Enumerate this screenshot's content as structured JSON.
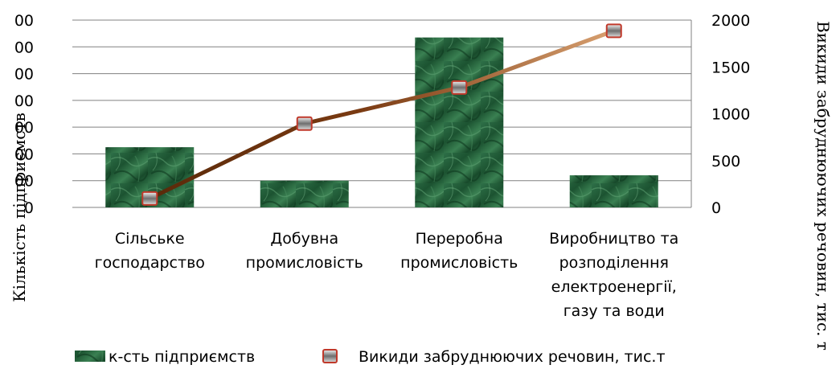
{
  "chart_data": {
    "type": "bar",
    "categories": [
      [
        "Сільське",
        "господарство"
      ],
      [
        "Добувна",
        "промисловість"
      ],
      [
        "Переробна",
        "промисловість"
      ],
      [
        "Виробництво та",
        "розподілення",
        "електроенергії,",
        "газу та води"
      ]
    ],
    "series": [
      {
        "name": "к-сть підприємств",
        "type": "bar",
        "axis": "left",
        "values": [
          225,
          100,
          635,
          120
        ]
      },
      {
        "name": "Викиди забруднюючих речовин, тис.т",
        "type": "line",
        "axis": "right",
        "values": [
          95,
          895,
          1280,
          1885
        ]
      }
    ],
    "ylabel": "Кількість підприємств",
    "y2label": "Викиди забруднюючих речовин, тис. т",
    "ylim": [
      0,
      700
    ],
    "yticks_labels": [
      "0",
      "00",
      "00",
      "00",
      "00",
      "00",
      "00",
      "00"
    ],
    "y2lim": [
      0,
      2000
    ],
    "y2ticks": [
      0,
      500,
      1000,
      1500,
      2000
    ],
    "grid": true,
    "legend_position": "bottom",
    "colors": {
      "bar": "#1f5c36",
      "bar_light": "#3f8a58",
      "line_start": "#5a2a0a",
      "line_end": "#d8a070",
      "marker_border": "#c0392b",
      "marker_fill": "#b8b8b8",
      "grid": "#808080"
    }
  }
}
